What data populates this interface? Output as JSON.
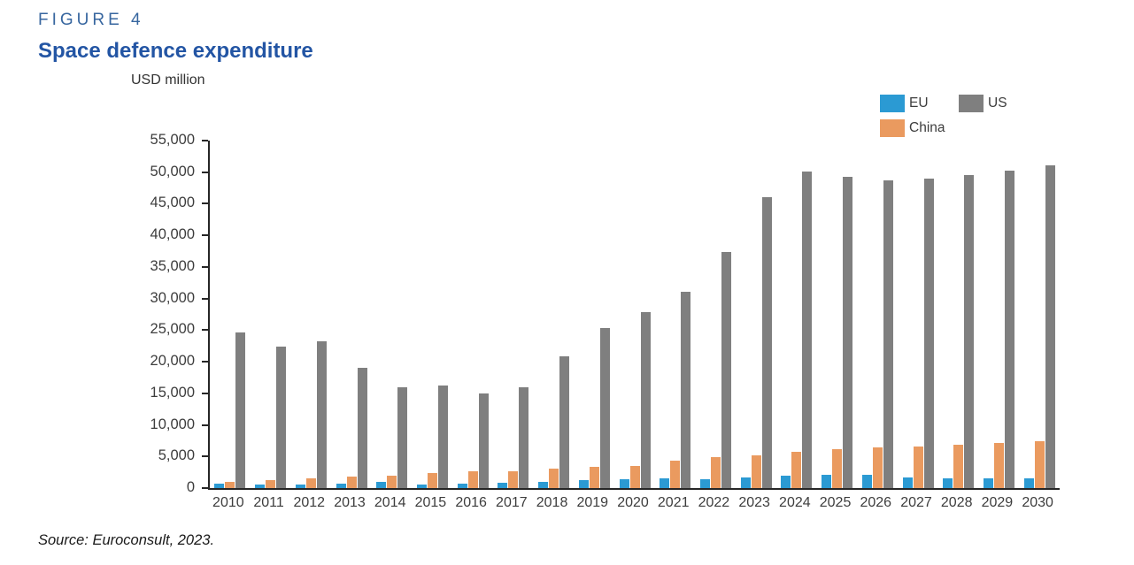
{
  "figure_label": "FIGURE 4",
  "title": "Space defence expenditure",
  "source_note": "Source: Euroconsult, 2023.",
  "colors": {
    "figure_label_text": "#37669f",
    "title_text": "#2355a4",
    "axis_line": "#262626",
    "axis_text": "#3d3d3d",
    "eu": "#2b9ad3",
    "us": "#7f7f7f",
    "china": "#ea9a5f"
  },
  "legend": {
    "items": [
      {
        "label": "EU",
        "color": "#2b9ad3"
      },
      {
        "label": "US",
        "color": "#7f7f7f"
      },
      {
        "label": "China",
        "color": "#ea9a5f"
      }
    ]
  },
  "chart_data": {
    "type": "bar",
    "title": "Space defence expenditure",
    "units_label": "USD million",
    "xlabel": "",
    "ylabel": "USD million",
    "ylim": [
      0,
      55000
    ],
    "ytick_step": 5000,
    "grid": false,
    "legend_position": "top-right",
    "bar_draw_order": [
      "EU",
      "China",
      "US"
    ],
    "categories": [
      "2010",
      "2011",
      "2012",
      "2013",
      "2014",
      "2015",
      "2016",
      "2017",
      "2018",
      "2019",
      "2020",
      "2021",
      "2022",
      "2023",
      "2024",
      "2025",
      "2026",
      "2027",
      "2028",
      "2029",
      "2030"
    ],
    "series": [
      {
        "name": "EU",
        "color": "#2b9ad3",
        "values": [
          700,
          600,
          500,
          700,
          1000,
          500,
          700,
          900,
          1000,
          1200,
          1400,
          1600,
          1400,
          1700,
          1900,
          2100,
          2100,
          1700,
          1500,
          1600,
          1600
        ]
      },
      {
        "name": "China",
        "color": "#ea9a5f",
        "values": [
          1000,
          1200,
          1500,
          1800,
          2000,
          2400,
          2600,
          2700,
          3100,
          3300,
          3500,
          4300,
          4900,
          5200,
          5800,
          6100,
          6400,
          6600,
          6900,
          7100,
          7400
        ]
      },
      {
        "name": "US",
        "color": "#7f7f7f",
        "values": [
          24700,
          22400,
          23200,
          19100,
          15900,
          16200,
          15000,
          16000,
          20900,
          25300,
          27800,
          31100,
          37300,
          46000,
          50100,
          49200,
          48700,
          49000,
          49600,
          50200,
          51100
        ]
      }
    ]
  }
}
